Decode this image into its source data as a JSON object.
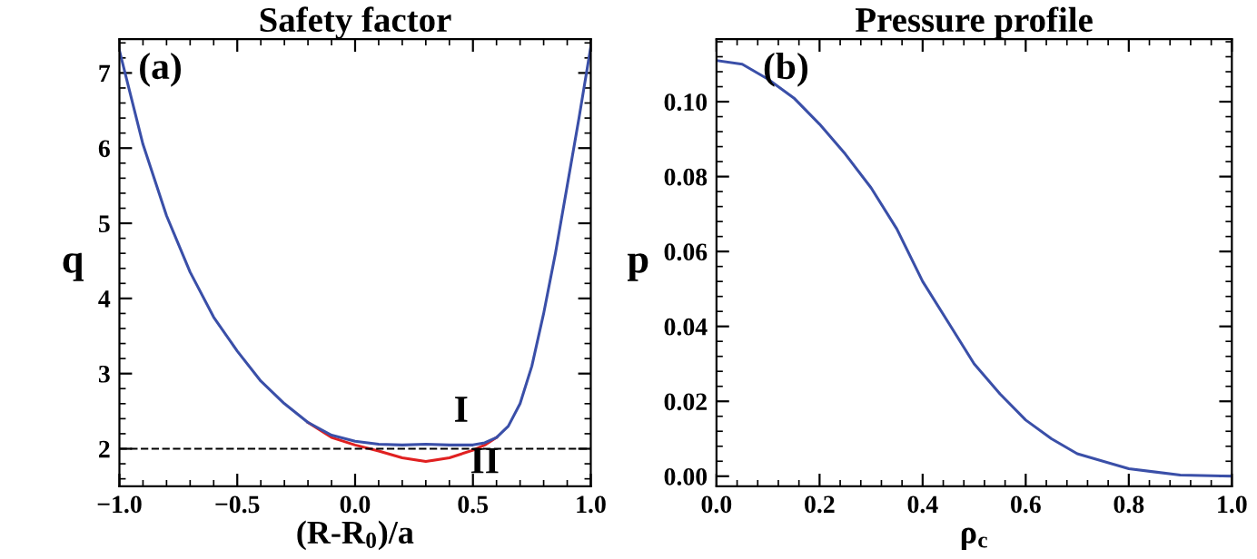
{
  "chart_data": [
    {
      "type": "line",
      "title": "Safety factor",
      "xlabel": "(R-R$_{0}$)/a",
      "ylabel": "q",
      "xlim": [
        -1,
        1
      ],
      "ylim": [
        1.5,
        7.45
      ],
      "xticks": [
        {
          "value": -1,
          "label": "−1.0"
        },
        {
          "value": -0.5,
          "label": "−0.5"
        },
        {
          "value": 0,
          "label": "0.0"
        },
        {
          "value": 0.5,
          "label": "0.5"
        },
        {
          "value": 1,
          "label": "1.0"
        }
      ],
      "yticks": [
        2,
        3,
        4,
        5,
        6,
        7
      ],
      "grid": false,
      "legend": false,
      "x": [
        -1.0,
        -0.9,
        -0.8,
        -0.7,
        -0.6,
        -0.5,
        -0.4,
        -0.3,
        -0.2,
        -0.1,
        0.0,
        0.1,
        0.2,
        0.3,
        0.4,
        0.5,
        0.55,
        0.6,
        0.65,
        0.7,
        0.75,
        0.8,
        0.85,
        0.9,
        0.95,
        1.0
      ],
      "series": [
        {
          "color": "#e02020",
          "x": [
            -0.2,
            -0.1,
            0.0,
            0.1,
            0.2,
            0.3,
            0.4,
            0.5,
            0.55,
            0.6
          ],
          "values": [
            2.35,
            2.15,
            2.05,
            1.97,
            1.88,
            1.83,
            1.88,
            1.98,
            2.05,
            2.15
          ]
        },
        {
          "color": "#3a4fa8",
          "values": [
            7.3,
            6.05,
            5.1,
            4.35,
            3.75,
            3.3,
            2.9,
            2.6,
            2.35,
            2.18,
            2.1,
            2.06,
            2.05,
            2.06,
            2.05,
            2.05,
            2.08,
            2.15,
            2.3,
            2.6,
            3.1,
            3.8,
            4.6,
            5.5,
            6.4,
            7.35
          ]
        }
      ],
      "ref_lines": [
        {
          "axis": "y",
          "value": 2,
          "color": "#000000",
          "line_style": "dashed"
        }
      ],
      "annotations": [
        "(a)",
        "I",
        "II"
      ]
    },
    {
      "type": "line",
      "title": "Pressure profile",
      "xlabel": "ρ$_{c}$",
      "ylabel": "p",
      "xlim": [
        0,
        1
      ],
      "ylim": [
        -0.0027,
        0.1167
      ],
      "xticks": [
        {
          "value": 0,
          "label": "0.0"
        },
        0.2,
        0.4,
        0.6,
        0.8,
        {
          "value": 1,
          "label": "1.0"
        }
      ],
      "yticks": [
        {
          "value": 0,
          "label": "0.00"
        },
        {
          "value": 0.02,
          "label": "0.02"
        },
        {
          "value": 0.04,
          "label": "0.04"
        },
        {
          "value": 0.06,
          "label": "0.06"
        },
        {
          "value": 0.08,
          "label": "0.08"
        },
        {
          "value": 0.1,
          "label": "0.10"
        }
      ],
      "grid": false,
      "legend": false,
      "x": [
        0,
        0.05,
        0.1,
        0.15,
        0.2,
        0.25,
        0.3,
        0.35,
        0.4,
        0.45,
        0.5,
        0.55,
        0.6,
        0.65,
        0.7,
        0.8,
        0.9,
        1.0
      ],
      "series": [
        {
          "color": "#3a4fa8",
          "values": [
            0.111,
            0.11,
            0.106,
            0.101,
            0.094,
            0.086,
            0.077,
            0.066,
            0.052,
            0.041,
            0.03,
            0.022,
            0.015,
            0.01,
            0.006,
            0.002,
            0.0003,
            0
          ]
        }
      ],
      "annotations": [
        "(b)"
      ]
    }
  ]
}
